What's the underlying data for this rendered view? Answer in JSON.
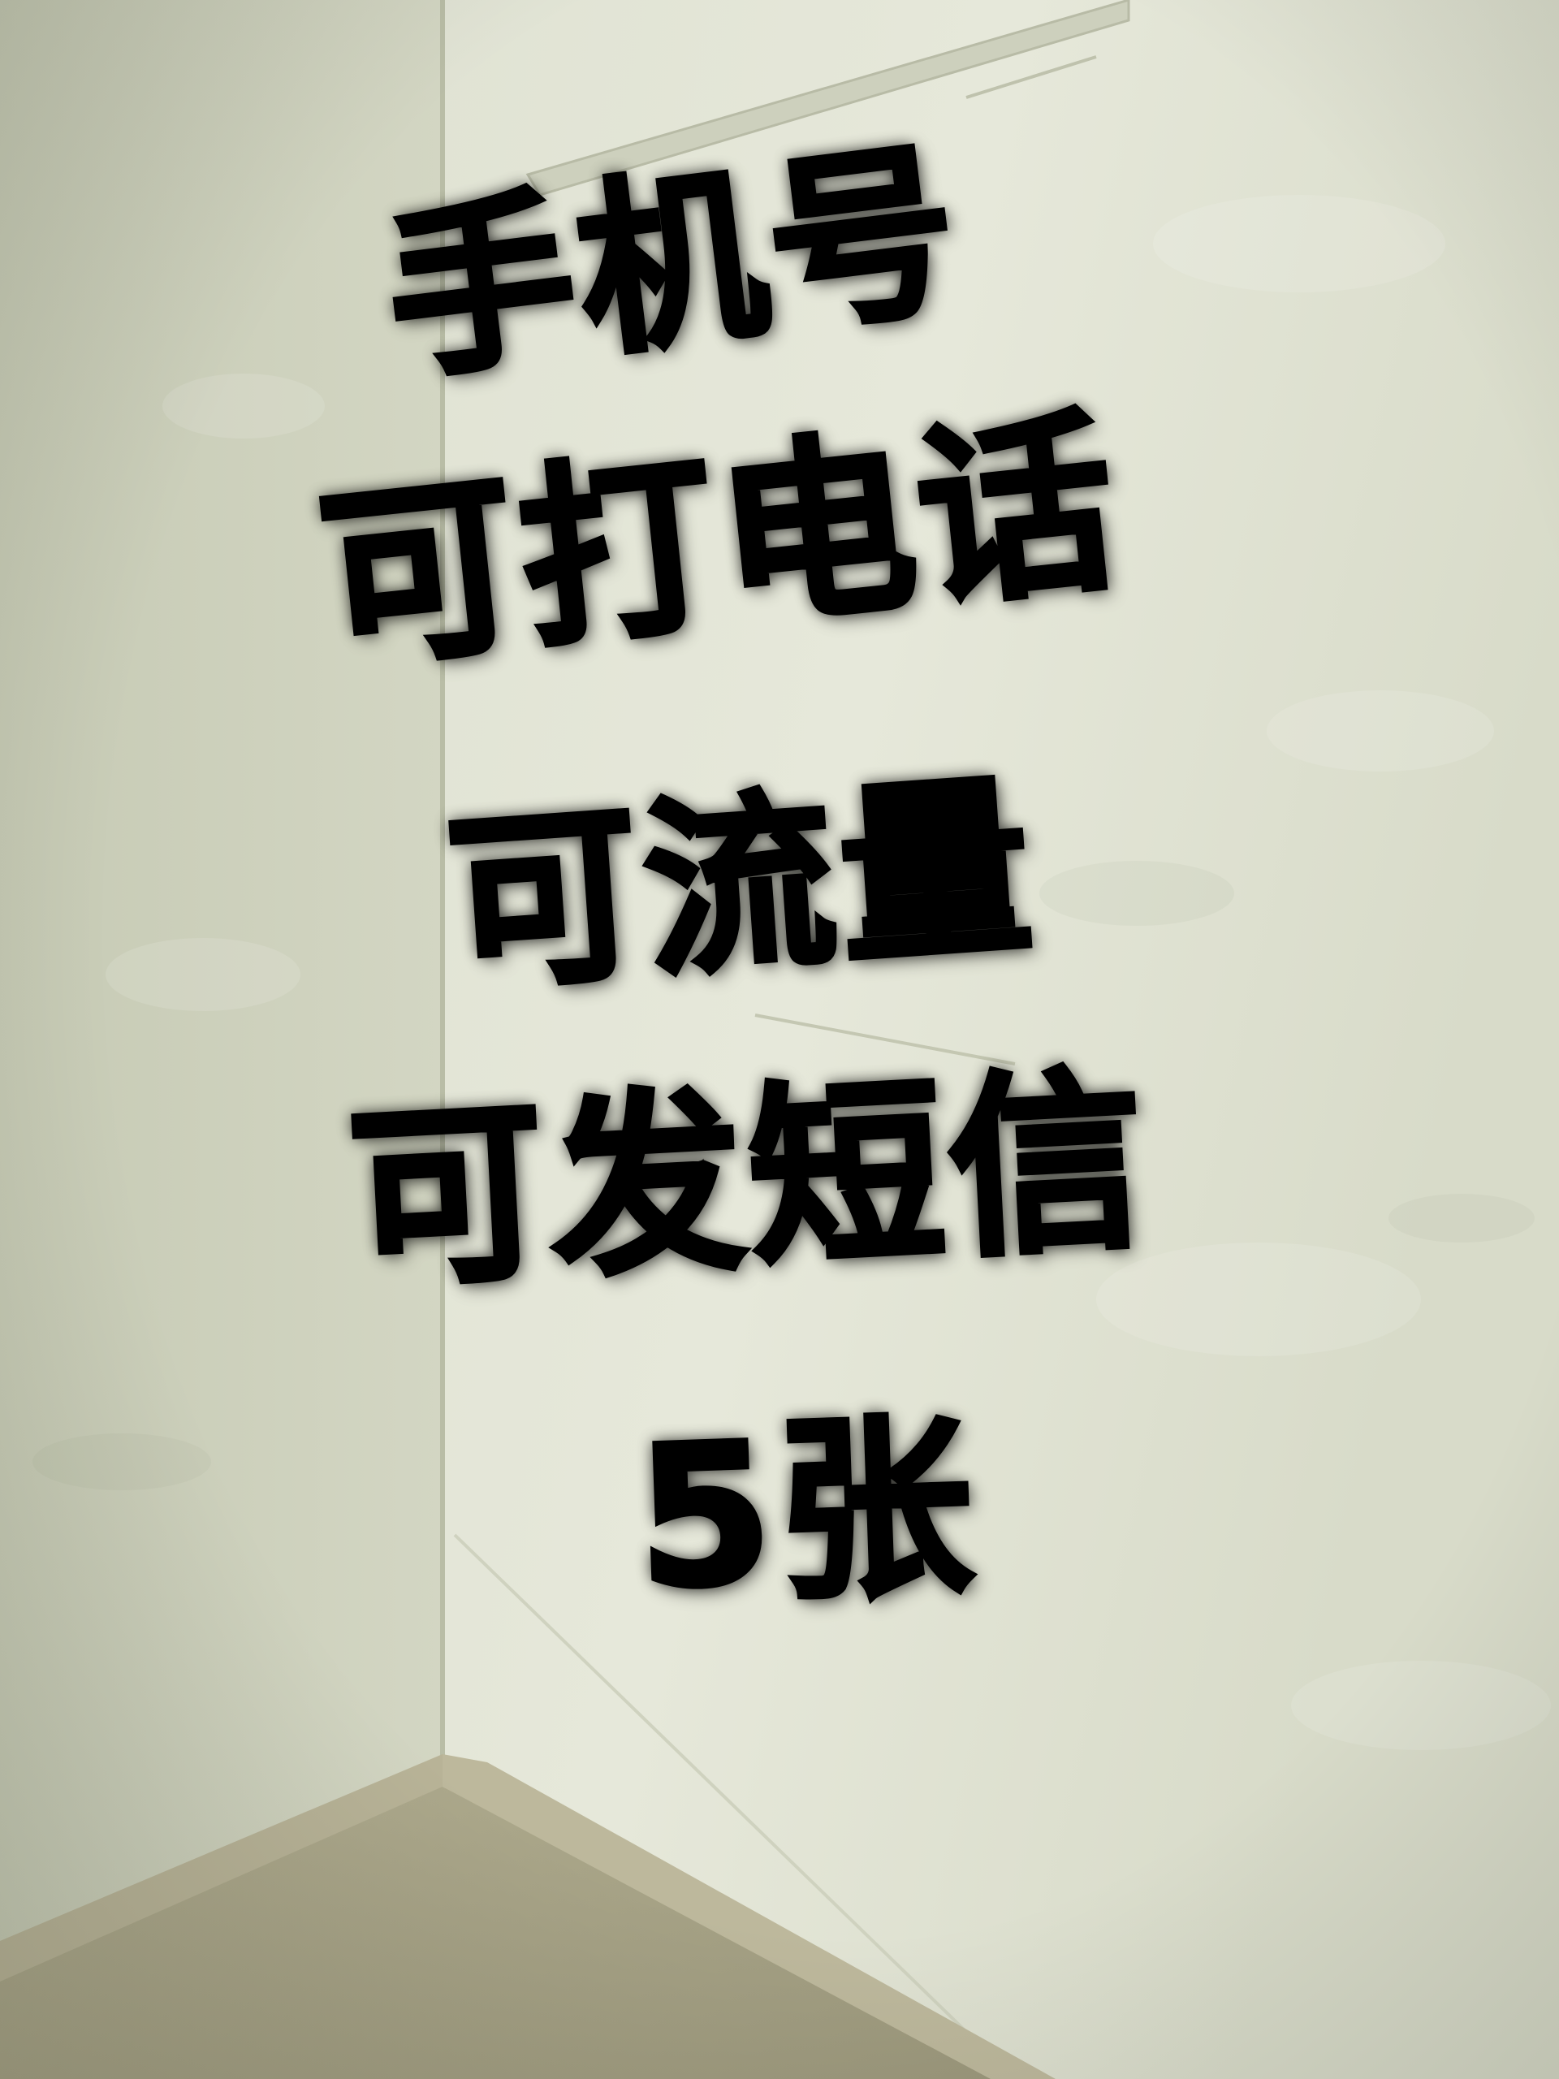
{
  "photo": {
    "subject": "room-corner-wall",
    "colors": {
      "wall_left": "#c9cdb8",
      "wall_right": "#e3e5d6",
      "floor": "#a8a487",
      "baseboard": "#b7b295",
      "text": "#000000"
    }
  },
  "caption": {
    "lines": [
      "手机号",
      "可打电话",
      "可流量",
      "可发短信",
      "5张"
    ]
  }
}
